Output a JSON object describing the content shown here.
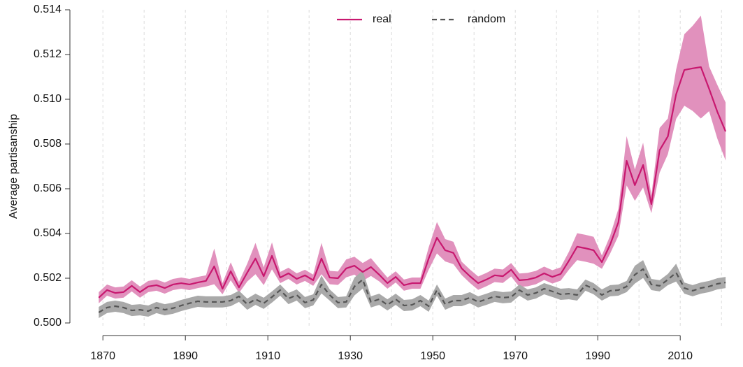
{
  "chart_data": {
    "type": "line",
    "ylabel": "Average partisanship",
    "legend": "top",
    "x": [
      1869,
      1871,
      1873,
      1875,
      1877,
      1879,
      1881,
      1883,
      1885,
      1887,
      1889,
      1891,
      1893,
      1895,
      1897,
      1899,
      1901,
      1903,
      1905,
      1907,
      1909,
      1911,
      1913,
      1915,
      1917,
      1919,
      1921,
      1923,
      1925,
      1927,
      1929,
      1931,
      1933,
      1935,
      1937,
      1939,
      1941,
      1943,
      1945,
      1947,
      1949,
      1951,
      1953,
      1955,
      1957,
      1959,
      1961,
      1963,
      1965,
      1967,
      1969,
      1971,
      1973,
      1975,
      1977,
      1979,
      1981,
      1983,
      1985,
      1987,
      1989,
      1991,
      1993,
      1995,
      1997,
      1999,
      2001,
      2003,
      2005,
      2007,
      2009,
      2011,
      2013,
      2015,
      2017,
      2019,
      2021
    ],
    "xlim": [
      1862,
      2022
    ],
    "xticks": [
      1870,
      1890,
      1910,
      1930,
      1950,
      1970,
      1990,
      2010
    ],
    "xgrid": [
      1870,
      1880,
      1890,
      1900,
      1910,
      1920,
      1930,
      1940,
      1950,
      1960,
      1970,
      1980,
      1990,
      2000,
      2010,
      2020
    ],
    "ylim": [
      0.5,
      0.514
    ],
    "yticks": [
      {
        "value": 0.5,
        "label": "0.500"
      },
      0.502,
      0.504,
      0.506,
      0.508,
      {
        "value": 0.51,
        "label": "0.510"
      },
      0.512,
      0.514
    ],
    "series": [
      {
        "name": "real",
        "color": "#c8186f",
        "band_color": "#e191bd",
        "dashed": false,
        "values": [
          0.50113,
          0.50147,
          0.50134,
          0.50138,
          0.50166,
          0.50138,
          0.50163,
          0.50169,
          0.50156,
          0.50172,
          0.50178,
          0.50172,
          0.50181,
          0.50188,
          0.50253,
          0.50153,
          0.50231,
          0.50159,
          0.50225,
          0.50288,
          0.50209,
          0.503,
          0.50203,
          0.50222,
          0.50197,
          0.50213,
          0.50191,
          0.50288,
          0.50203,
          0.502,
          0.50244,
          0.50256,
          0.50228,
          0.5025,
          0.50216,
          0.50178,
          0.50206,
          0.50169,
          0.50178,
          0.50178,
          0.50288,
          0.50381,
          0.50325,
          0.50313,
          0.50244,
          0.50209,
          0.50178,
          0.50194,
          0.50213,
          0.50209,
          0.50238,
          0.50191,
          0.50194,
          0.50203,
          0.50222,
          0.50206,
          0.50219,
          0.50278,
          0.50341,
          0.50334,
          0.50325,
          0.50272,
          0.5035,
          0.5045,
          0.50725,
          0.50616,
          0.50706,
          0.50531,
          0.50772,
          0.50834,
          0.51022,
          0.51131,
          0.51138,
          0.51144,
          0.51047,
          0.50944,
          0.50856
        ],
        "lower": [
          0.50088,
          0.50122,
          0.50109,
          0.50113,
          0.50141,
          0.50113,
          0.50138,
          0.50144,
          0.50131,
          0.50147,
          0.50153,
          0.50147,
          0.50156,
          0.50163,
          0.50173,
          0.50128,
          0.50191,
          0.50134,
          0.50185,
          0.50218,
          0.50169,
          0.5024,
          0.50178,
          0.50197,
          0.50172,
          0.50188,
          0.50166,
          0.50218,
          0.50173,
          0.5017,
          0.50204,
          0.50216,
          0.50188,
          0.5021,
          0.50186,
          0.50153,
          0.50181,
          0.50144,
          0.50153,
          0.50153,
          0.50238,
          0.50311,
          0.50275,
          0.50263,
          0.50214,
          0.50179,
          0.50148,
          0.50164,
          0.50183,
          0.50179,
          0.50208,
          0.50161,
          0.50164,
          0.50173,
          0.50192,
          0.50176,
          0.50189,
          0.50238,
          0.50281,
          0.50274,
          0.50265,
          0.50242,
          0.5031,
          0.5039,
          0.50615,
          0.50546,
          0.50606,
          0.50491,
          0.50672,
          0.50754,
          0.50912,
          0.50971,
          0.50948,
          0.50914,
          0.50947,
          0.50824,
          0.50726
        ],
        "upper": [
          0.50138,
          0.50172,
          0.50159,
          0.50163,
          0.50191,
          0.50163,
          0.50188,
          0.50194,
          0.50181,
          0.50197,
          0.50203,
          0.50197,
          0.50206,
          0.50213,
          0.50333,
          0.50178,
          0.50271,
          0.50184,
          0.50265,
          0.50358,
          0.50249,
          0.5036,
          0.50228,
          0.50247,
          0.50222,
          0.50238,
          0.50216,
          0.50358,
          0.50233,
          0.5023,
          0.50284,
          0.50296,
          0.50268,
          0.5029,
          0.50246,
          0.50203,
          0.50231,
          0.50194,
          0.50203,
          0.50203,
          0.50338,
          0.50451,
          0.50375,
          0.50363,
          0.50274,
          0.50239,
          0.50208,
          0.50224,
          0.50243,
          0.50239,
          0.50268,
          0.50221,
          0.50224,
          0.50233,
          0.50252,
          0.50236,
          0.50249,
          0.50318,
          0.50401,
          0.50394,
          0.50385,
          0.50302,
          0.5039,
          0.5051,
          0.50835,
          0.50686,
          0.50806,
          0.50571,
          0.50872,
          0.50914,
          0.51132,
          0.51291,
          0.51328,
          0.51374,
          0.51147,
          0.51064,
          0.50986
        ]
      },
      {
        "name": "random",
        "color": "#555555",
        "band_color": "#a9a9a9",
        "dashed": true,
        "values": [
          0.50047,
          0.50069,
          0.50075,
          0.50069,
          0.50056,
          0.50059,
          0.50053,
          0.50069,
          0.50059,
          0.50066,
          0.50078,
          0.50088,
          0.50097,
          0.50094,
          0.50094,
          0.50094,
          0.501,
          0.50119,
          0.50084,
          0.50106,
          0.50088,
          0.50116,
          0.50147,
          0.50109,
          0.50125,
          0.50091,
          0.50103,
          0.50172,
          0.50125,
          0.50091,
          0.50094,
          0.50163,
          0.50194,
          0.50094,
          0.50106,
          0.50081,
          0.50106,
          0.50078,
          0.50081,
          0.501,
          0.50075,
          0.50147,
          0.50084,
          0.501,
          0.501,
          0.50113,
          0.50094,
          0.50106,
          0.50119,
          0.50113,
          0.50116,
          0.50147,
          0.50125,
          0.50134,
          0.50153,
          0.50141,
          0.50128,
          0.50131,
          0.50125,
          0.50169,
          0.50153,
          0.50125,
          0.50144,
          0.50147,
          0.50163,
          0.50216,
          0.50241,
          0.50172,
          0.50166,
          0.50194,
          0.50225,
          0.50156,
          0.50144,
          0.50156,
          0.50163,
          0.50175,
          0.50181
        ],
        "lower": [
          0.50022,
          0.50044,
          0.5005,
          0.50044,
          0.50031,
          0.50034,
          0.50028,
          0.50044,
          0.50034,
          0.50041,
          0.50053,
          0.50063,
          0.50072,
          0.50069,
          0.50069,
          0.50069,
          0.50075,
          0.50094,
          0.50059,
          0.50081,
          0.50063,
          0.50091,
          0.50122,
          0.50084,
          0.501,
          0.50066,
          0.50078,
          0.50132,
          0.501,
          0.50066,
          0.50069,
          0.50123,
          0.50154,
          0.50069,
          0.50081,
          0.50056,
          0.50081,
          0.50053,
          0.50056,
          0.50075,
          0.5005,
          0.50122,
          0.50059,
          0.50075,
          0.50075,
          0.50088,
          0.50069,
          0.50081,
          0.50094,
          0.50088,
          0.50091,
          0.50122,
          0.501,
          0.50109,
          0.50128,
          0.50116,
          0.50103,
          0.50106,
          0.501,
          0.50144,
          0.50128,
          0.501,
          0.50119,
          0.50122,
          0.50138,
          0.50176,
          0.50201,
          0.50147,
          0.50141,
          0.50169,
          0.50185,
          0.50131,
          0.50119,
          0.50131,
          0.50138,
          0.5015,
          0.50156
        ],
        "upper": [
          0.50072,
          0.50094,
          0.501,
          0.50094,
          0.50081,
          0.50084,
          0.50078,
          0.50094,
          0.50084,
          0.50091,
          0.50103,
          0.50113,
          0.50122,
          0.50119,
          0.50119,
          0.50119,
          0.50125,
          0.50144,
          0.50109,
          0.50131,
          0.50113,
          0.50141,
          0.50172,
          0.50134,
          0.5015,
          0.50116,
          0.50128,
          0.50212,
          0.5015,
          0.50116,
          0.50119,
          0.50203,
          0.50234,
          0.50119,
          0.50131,
          0.50106,
          0.50131,
          0.50103,
          0.50106,
          0.50125,
          0.501,
          0.50172,
          0.50109,
          0.50125,
          0.50125,
          0.50138,
          0.50119,
          0.50131,
          0.50144,
          0.50138,
          0.50141,
          0.50172,
          0.5015,
          0.50159,
          0.50178,
          0.50166,
          0.50153,
          0.50156,
          0.5015,
          0.50194,
          0.50178,
          0.5015,
          0.50169,
          0.50172,
          0.50188,
          0.50256,
          0.50281,
          0.50197,
          0.50191,
          0.50219,
          0.50265,
          0.50181,
          0.50169,
          0.50181,
          0.50188,
          0.502,
          0.50206
        ]
      }
    ]
  }
}
